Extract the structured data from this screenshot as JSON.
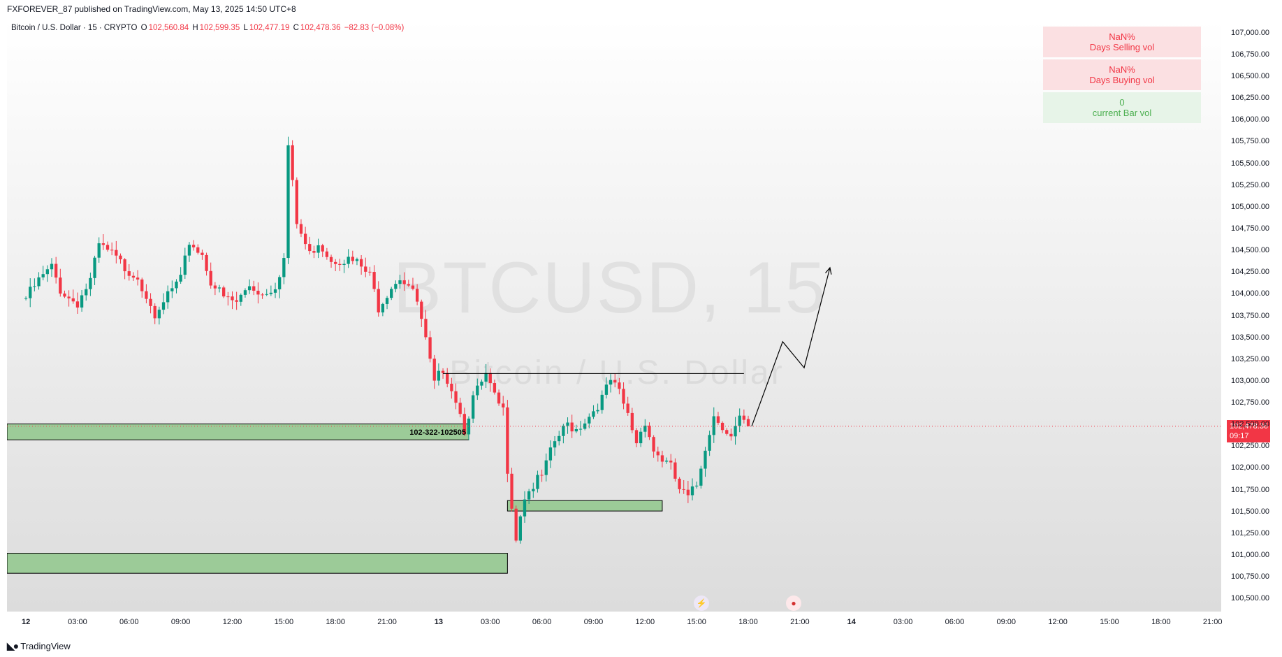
{
  "publish_line": "FXFOREVER_87 published on TradingView.com, May 13, 2025 14:50 UTC+8",
  "legend": {
    "symbol": "Bitcoin / U.S. Dollar · 15 · CRYPTO",
    "o_label": "O",
    "o_value": "102,560.84",
    "h_label": "H",
    "h_value": "102,599.35",
    "l_label": "L",
    "l_value": "102,477.19",
    "c_label": "C",
    "c_value": "102,478.36",
    "change": "−82.83 (−0.08%)"
  },
  "watermark": {
    "ticker": "BTCUSD, 15",
    "name": "Bitcoin / U.S. Dollar"
  },
  "volume_table": [
    {
      "value": "NaN%",
      "label": "Days Selling vol",
      "tone": "red"
    },
    {
      "value": "NaN%",
      "label": "Days Buying vol",
      "tone": "red"
    },
    {
      "value": "0",
      "label": "current Bar vol",
      "tone": "green"
    }
  ],
  "price_tag": {
    "price": "102,478.36",
    "countdown": "09:17"
  },
  "footer": {
    "brand": "TradingView"
  },
  "colors": {
    "up": "#089981",
    "down": "#f23645",
    "zone_fill": "#9ccb98",
    "zone_border": "#000000"
  },
  "chart_data": {
    "type": "candlestick",
    "title": "Bitcoin / U.S. Dollar · 15 · CRYPTO",
    "ylim": [
      100350,
      107150
    ],
    "y_ticks": [
      "100,500.00",
      "100,750.00",
      "101,000.00",
      "101,250.00",
      "101,500.00",
      "101,750.00",
      "102,000.00",
      "102,250.00",
      "102,500.00",
      "102,750.00",
      "103,000.00",
      "103,250.00",
      "103,500.00",
      "103,750.00",
      "104,000.00",
      "104,250.00",
      "104,500.00",
      "104,750.00",
      "105,000.00",
      "105,250.00",
      "105,500.00",
      "105,750.00",
      "106,000.00",
      "106,250.00",
      "106,500.00",
      "106,750.00",
      "107,000.00"
    ],
    "x_ticks": [
      "12",
      "03:00",
      "06:00",
      "09:00",
      "12:00",
      "15:00",
      "18:00",
      "21:00",
      "13",
      "03:00",
      "06:00",
      "09:00",
      "12:00",
      "15:00",
      "18:00",
      "21:00",
      "14",
      "03:00",
      "06:00",
      "09:00",
      "12:00",
      "15:00",
      "18:00",
      "21:00"
    ],
    "x_range_hours": [
      -1.1,
      69.5
    ],
    "last_price": 102478.36,
    "close_path": [
      [
        0,
        103950
      ],
      [
        0.75,
        104150
      ],
      [
        1.5,
        104300
      ],
      [
        2.0,
        104050
      ],
      [
        2.5,
        103950
      ],
      [
        3.0,
        103900
      ],
      [
        3.75,
        104150
      ],
      [
        4.25,
        104550
      ],
      [
        5.0,
        104450
      ],
      [
        5.75,
        104300
      ],
      [
        6.5,
        104200
      ],
      [
        7.25,
        103900
      ],
      [
        7.5,
        103650
      ],
      [
        8.25,
        104000
      ],
      [
        9.0,
        104150
      ],
      [
        9.5,
        104600
      ],
      [
        10.25,
        104450
      ],
      [
        10.75,
        104150
      ],
      [
        11.5,
        103950
      ],
      [
        12.25,
        103900
      ],
      [
        13.0,
        104100
      ],
      [
        13.75,
        104000
      ],
      [
        14.5,
        104100
      ],
      [
        15.0,
        104400
      ],
      [
        15.25,
        105700
      ],
      [
        15.75,
        104800
      ],
      [
        16.5,
        104450
      ],
      [
        17.0,
        104600
      ],
      [
        17.75,
        104400
      ],
      [
        18.5,
        104400
      ],
      [
        19.25,
        104350
      ],
      [
        20.0,
        104200
      ],
      [
        20.5,
        103850
      ],
      [
        21.25,
        104100
      ],
      [
        21.75,
        104200
      ],
      [
        22.25,
        104100
      ],
      [
        22.75,
        103900
      ],
      [
        23.25,
        103450
      ],
      [
        23.75,
        102950
      ],
      [
        24.25,
        103150
      ],
      [
        25.0,
        102800
      ],
      [
        25.5,
        102450
      ],
      [
        26.0,
        102800
      ],
      [
        26.75,
        103050
      ],
      [
        27.25,
        102800
      ],
      [
        27.75,
        102650
      ],
      [
        28.0,
        102000
      ],
      [
        28.5,
        101200
      ],
      [
        28.9,
        101650
      ],
      [
        29.5,
        101800
      ],
      [
        30.0,
        101900
      ],
      [
        30.75,
        102300
      ],
      [
        31.5,
        102500
      ],
      [
        32.0,
        102450
      ],
      [
        32.75,
        102600
      ],
      [
        33.5,
        102800
      ],
      [
        34.0,
        103000
      ],
      [
        34.5,
        102850
      ],
      [
        35.0,
        102600
      ],
      [
        35.5,
        102300
      ],
      [
        36.0,
        102550
      ],
      [
        36.5,
        102200
      ],
      [
        37.0,
        102100
      ],
      [
        37.5,
        102000
      ],
      [
        38.0,
        101750
      ],
      [
        38.5,
        101650
      ],
      [
        39.0,
        101800
      ],
      [
        39.5,
        102250
      ],
      [
        40.0,
        102600
      ],
      [
        40.5,
        102500
      ],
      [
        41.0,
        102350
      ],
      [
        41.5,
        102550
      ],
      [
        42.0,
        102450
      ],
      [
        42.2,
        102478
      ]
    ],
    "annotations": {
      "resistance_line": {
        "price": 103085,
        "from_h": 24.25,
        "to_h": 41.75
      },
      "zones": [
        {
          "label": "102-322-102505",
          "from_h": -1.1,
          "to_h": 25.75,
          "low": 102322,
          "high": 102505
        },
        {
          "label": "",
          "from_h": 28.0,
          "to_h": 37.0,
          "low": 101505,
          "high": 101625
        },
        {
          "label": "",
          "from_h": -1.1,
          "to_h": 28.0,
          "low": 100790,
          "high": 101020
        }
      ],
      "projection_path": [
        [
          42.2,
          102478
        ],
        [
          44.0,
          103450
        ],
        [
          45.25,
          103150
        ],
        [
          46.75,
          104300
        ]
      ]
    }
  }
}
